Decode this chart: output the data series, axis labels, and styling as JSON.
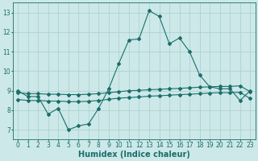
{
  "title": "",
  "xlabel": "Humidex (Indice chaleur)",
  "ylabel": "",
  "xlim": [
    -0.5,
    23.5
  ],
  "ylim": [
    6.5,
    13.5
  ],
  "yticks": [
    7,
    8,
    9,
    10,
    11,
    12,
    13
  ],
  "xticks": [
    0,
    1,
    2,
    3,
    4,
    5,
    6,
    7,
    8,
    9,
    10,
    11,
    12,
    13,
    14,
    15,
    16,
    17,
    18,
    19,
    20,
    21,
    22,
    23
  ],
  "bg_color": "#cce8e8",
  "line_color": "#1a6e6a",
  "grid_color": "#aacece",
  "series1": [
    9.0,
    8.7,
    8.7,
    7.8,
    8.1,
    7.0,
    7.2,
    7.3,
    8.1,
    9.1,
    10.4,
    11.6,
    11.65,
    13.1,
    12.8,
    11.4,
    11.7,
    11.0,
    9.8,
    9.2,
    9.1,
    9.1,
    8.5,
    9.0
  ],
  "series2": [
    8.9,
    8.85,
    8.85,
    8.82,
    8.82,
    8.8,
    8.8,
    8.82,
    8.85,
    8.9,
    8.95,
    9.0,
    9.02,
    9.05,
    9.07,
    9.1,
    9.12,
    9.15,
    9.18,
    9.2,
    9.22,
    9.22,
    9.25,
    8.95
  ],
  "series3": [
    8.55,
    8.5,
    8.5,
    8.47,
    8.47,
    8.44,
    8.44,
    8.46,
    8.5,
    8.56,
    8.62,
    8.65,
    8.68,
    8.72,
    8.74,
    8.77,
    8.8,
    8.82,
    8.85,
    8.88,
    8.9,
    8.9,
    8.92,
    8.6
  ],
  "marker_size": 2,
  "line_width": 0.8,
  "font_size_ticks": 5.5,
  "font_size_label": 7.0
}
